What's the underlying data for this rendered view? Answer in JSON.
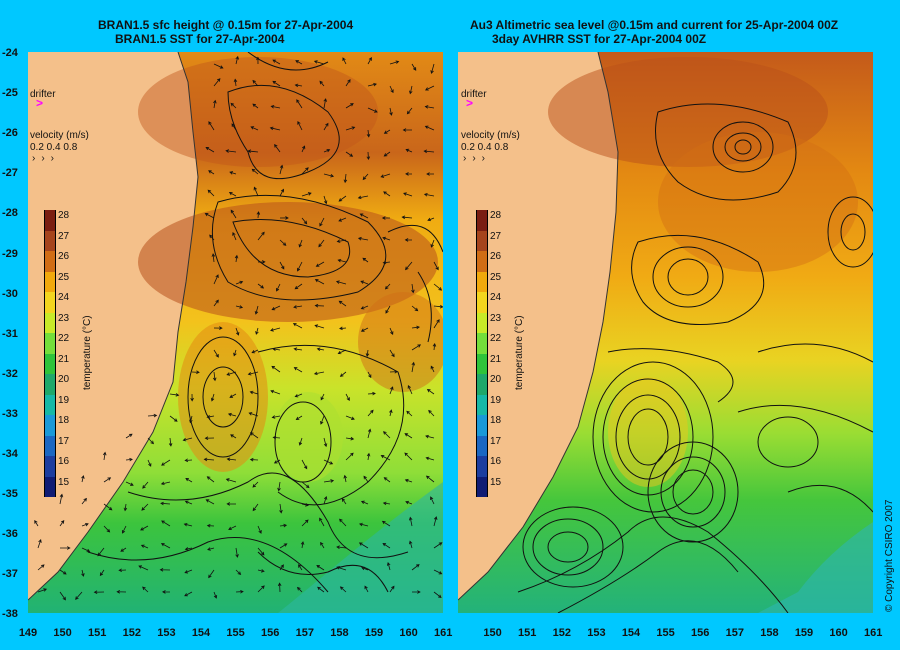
{
  "left_title": {
    "line1": "BRAN1.5 sfc height @ 0.15m for 27-Apr-2004",
    "line2": "BRAN1.5 SST for 27-Apr-2004"
  },
  "right_title": {
    "line1": "Au3 Altimetric sea level  @0.15m and current for 25-Apr-2004 00Z",
    "line2": "3day AVHRR SST for 27-Apr-2004 00Z"
  },
  "legend": {
    "drifter_label": "drifter",
    "velocity_label": "velocity (m/s)",
    "velocity_scale": "0.2 0.4 0.8",
    "colorbar_label": "temperature (°C)",
    "colorbar_values": [
      "28",
      "27",
      "26",
      "25",
      "24",
      "23",
      "22",
      "21",
      "20",
      "19",
      "18",
      "17",
      "16",
      "15"
    ],
    "colorbar_colors": [
      "#7a1e12",
      "#a5441c",
      "#d06d15",
      "#f1a90c",
      "#f3d51e",
      "#c8ea28",
      "#74de3a",
      "#2fc33a",
      "#1fa86a",
      "#17b8a6",
      "#1a99d8",
      "#1b67c2",
      "#1c3d9f",
      "#101c74"
    ]
  },
  "y_axis": [
    "-24",
    "-25",
    "-26",
    "-27",
    "-28",
    "-29",
    "-30",
    "-31",
    "-32",
    "-33",
    "-34",
    "-35",
    "-36",
    "-37",
    "-38"
  ],
  "x_axis": [
    "149",
    "150",
    "151",
    "152",
    "153",
    "154",
    "155",
    "156",
    "157",
    "158",
    "159",
    "160",
    "161"
  ],
  "copyright": "© Copyright CSIRO 2007",
  "colors": {
    "background": "#00c8ff",
    "land": "#f4c08a",
    "drifter": "#ff00ff"
  }
}
